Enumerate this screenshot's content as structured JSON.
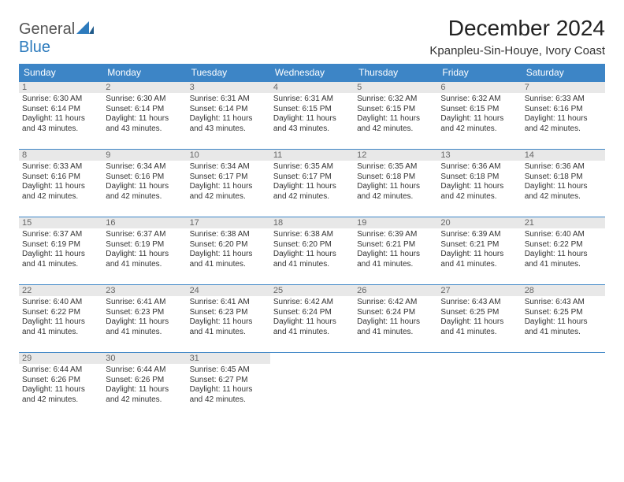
{
  "logo": {
    "part1": "General",
    "part2": "Blue"
  },
  "title": "December 2024",
  "subtitle": "Kpanpleu-Sin-Houye, Ivory Coast",
  "colors": {
    "header_bg": "#3d85c6",
    "header_text": "#ffffff",
    "border": "#3d85c6",
    "daynum_bg": "#e8e8e8",
    "logo_blue": "#2d7bbd",
    "logo_gray": "#555555",
    "text": "#333333",
    "background": "#ffffff"
  },
  "day_headers": [
    "Sunday",
    "Monday",
    "Tuesday",
    "Wednesday",
    "Thursday",
    "Friday",
    "Saturday"
  ],
  "table": {
    "columns": 7,
    "col_width_pct": 14.28,
    "fontsize_header": 12,
    "fontsize_day": 11,
    "fontsize_body": 10
  },
  "weeks": [
    [
      {
        "n": "1",
        "sr": "Sunrise: 6:30 AM",
        "ss": "Sunset: 6:14 PM",
        "dl1": "Daylight: 11 hours",
        "dl2": "and 43 minutes."
      },
      {
        "n": "2",
        "sr": "Sunrise: 6:30 AM",
        "ss": "Sunset: 6:14 PM",
        "dl1": "Daylight: 11 hours",
        "dl2": "and 43 minutes."
      },
      {
        "n": "3",
        "sr": "Sunrise: 6:31 AM",
        "ss": "Sunset: 6:14 PM",
        "dl1": "Daylight: 11 hours",
        "dl2": "and 43 minutes."
      },
      {
        "n": "4",
        "sr": "Sunrise: 6:31 AM",
        "ss": "Sunset: 6:15 PM",
        "dl1": "Daylight: 11 hours",
        "dl2": "and 43 minutes."
      },
      {
        "n": "5",
        "sr": "Sunrise: 6:32 AM",
        "ss": "Sunset: 6:15 PM",
        "dl1": "Daylight: 11 hours",
        "dl2": "and 42 minutes."
      },
      {
        "n": "6",
        "sr": "Sunrise: 6:32 AM",
        "ss": "Sunset: 6:15 PM",
        "dl1": "Daylight: 11 hours",
        "dl2": "and 42 minutes."
      },
      {
        "n": "7",
        "sr": "Sunrise: 6:33 AM",
        "ss": "Sunset: 6:16 PM",
        "dl1": "Daylight: 11 hours",
        "dl2": "and 42 minutes."
      }
    ],
    [
      {
        "n": "8",
        "sr": "Sunrise: 6:33 AM",
        "ss": "Sunset: 6:16 PM",
        "dl1": "Daylight: 11 hours",
        "dl2": "and 42 minutes."
      },
      {
        "n": "9",
        "sr": "Sunrise: 6:34 AM",
        "ss": "Sunset: 6:16 PM",
        "dl1": "Daylight: 11 hours",
        "dl2": "and 42 minutes."
      },
      {
        "n": "10",
        "sr": "Sunrise: 6:34 AM",
        "ss": "Sunset: 6:17 PM",
        "dl1": "Daylight: 11 hours",
        "dl2": "and 42 minutes."
      },
      {
        "n": "11",
        "sr": "Sunrise: 6:35 AM",
        "ss": "Sunset: 6:17 PM",
        "dl1": "Daylight: 11 hours",
        "dl2": "and 42 minutes."
      },
      {
        "n": "12",
        "sr": "Sunrise: 6:35 AM",
        "ss": "Sunset: 6:18 PM",
        "dl1": "Daylight: 11 hours",
        "dl2": "and 42 minutes."
      },
      {
        "n": "13",
        "sr": "Sunrise: 6:36 AM",
        "ss": "Sunset: 6:18 PM",
        "dl1": "Daylight: 11 hours",
        "dl2": "and 42 minutes."
      },
      {
        "n": "14",
        "sr": "Sunrise: 6:36 AM",
        "ss": "Sunset: 6:18 PM",
        "dl1": "Daylight: 11 hours",
        "dl2": "and 42 minutes."
      }
    ],
    [
      {
        "n": "15",
        "sr": "Sunrise: 6:37 AM",
        "ss": "Sunset: 6:19 PM",
        "dl1": "Daylight: 11 hours",
        "dl2": "and 41 minutes."
      },
      {
        "n": "16",
        "sr": "Sunrise: 6:37 AM",
        "ss": "Sunset: 6:19 PM",
        "dl1": "Daylight: 11 hours",
        "dl2": "and 41 minutes."
      },
      {
        "n": "17",
        "sr": "Sunrise: 6:38 AM",
        "ss": "Sunset: 6:20 PM",
        "dl1": "Daylight: 11 hours",
        "dl2": "and 41 minutes."
      },
      {
        "n": "18",
        "sr": "Sunrise: 6:38 AM",
        "ss": "Sunset: 6:20 PM",
        "dl1": "Daylight: 11 hours",
        "dl2": "and 41 minutes."
      },
      {
        "n": "19",
        "sr": "Sunrise: 6:39 AM",
        "ss": "Sunset: 6:21 PM",
        "dl1": "Daylight: 11 hours",
        "dl2": "and 41 minutes."
      },
      {
        "n": "20",
        "sr": "Sunrise: 6:39 AM",
        "ss": "Sunset: 6:21 PM",
        "dl1": "Daylight: 11 hours",
        "dl2": "and 41 minutes."
      },
      {
        "n": "21",
        "sr": "Sunrise: 6:40 AM",
        "ss": "Sunset: 6:22 PM",
        "dl1": "Daylight: 11 hours",
        "dl2": "and 41 minutes."
      }
    ],
    [
      {
        "n": "22",
        "sr": "Sunrise: 6:40 AM",
        "ss": "Sunset: 6:22 PM",
        "dl1": "Daylight: 11 hours",
        "dl2": "and 41 minutes."
      },
      {
        "n": "23",
        "sr": "Sunrise: 6:41 AM",
        "ss": "Sunset: 6:23 PM",
        "dl1": "Daylight: 11 hours",
        "dl2": "and 41 minutes."
      },
      {
        "n": "24",
        "sr": "Sunrise: 6:41 AM",
        "ss": "Sunset: 6:23 PM",
        "dl1": "Daylight: 11 hours",
        "dl2": "and 41 minutes."
      },
      {
        "n": "25",
        "sr": "Sunrise: 6:42 AM",
        "ss": "Sunset: 6:24 PM",
        "dl1": "Daylight: 11 hours",
        "dl2": "and 41 minutes."
      },
      {
        "n": "26",
        "sr": "Sunrise: 6:42 AM",
        "ss": "Sunset: 6:24 PM",
        "dl1": "Daylight: 11 hours",
        "dl2": "and 41 minutes."
      },
      {
        "n": "27",
        "sr": "Sunrise: 6:43 AM",
        "ss": "Sunset: 6:25 PM",
        "dl1": "Daylight: 11 hours",
        "dl2": "and 41 minutes."
      },
      {
        "n": "28",
        "sr": "Sunrise: 6:43 AM",
        "ss": "Sunset: 6:25 PM",
        "dl1": "Daylight: 11 hours",
        "dl2": "and 41 minutes."
      }
    ],
    [
      {
        "n": "29",
        "sr": "Sunrise: 6:44 AM",
        "ss": "Sunset: 6:26 PM",
        "dl1": "Daylight: 11 hours",
        "dl2": "and 42 minutes."
      },
      {
        "n": "30",
        "sr": "Sunrise: 6:44 AM",
        "ss": "Sunset: 6:26 PM",
        "dl1": "Daylight: 11 hours",
        "dl2": "and 42 minutes."
      },
      {
        "n": "31",
        "sr": "Sunrise: 6:45 AM",
        "ss": "Sunset: 6:27 PM",
        "dl1": "Daylight: 11 hours",
        "dl2": "and 42 minutes."
      },
      null,
      null,
      null,
      null
    ]
  ]
}
